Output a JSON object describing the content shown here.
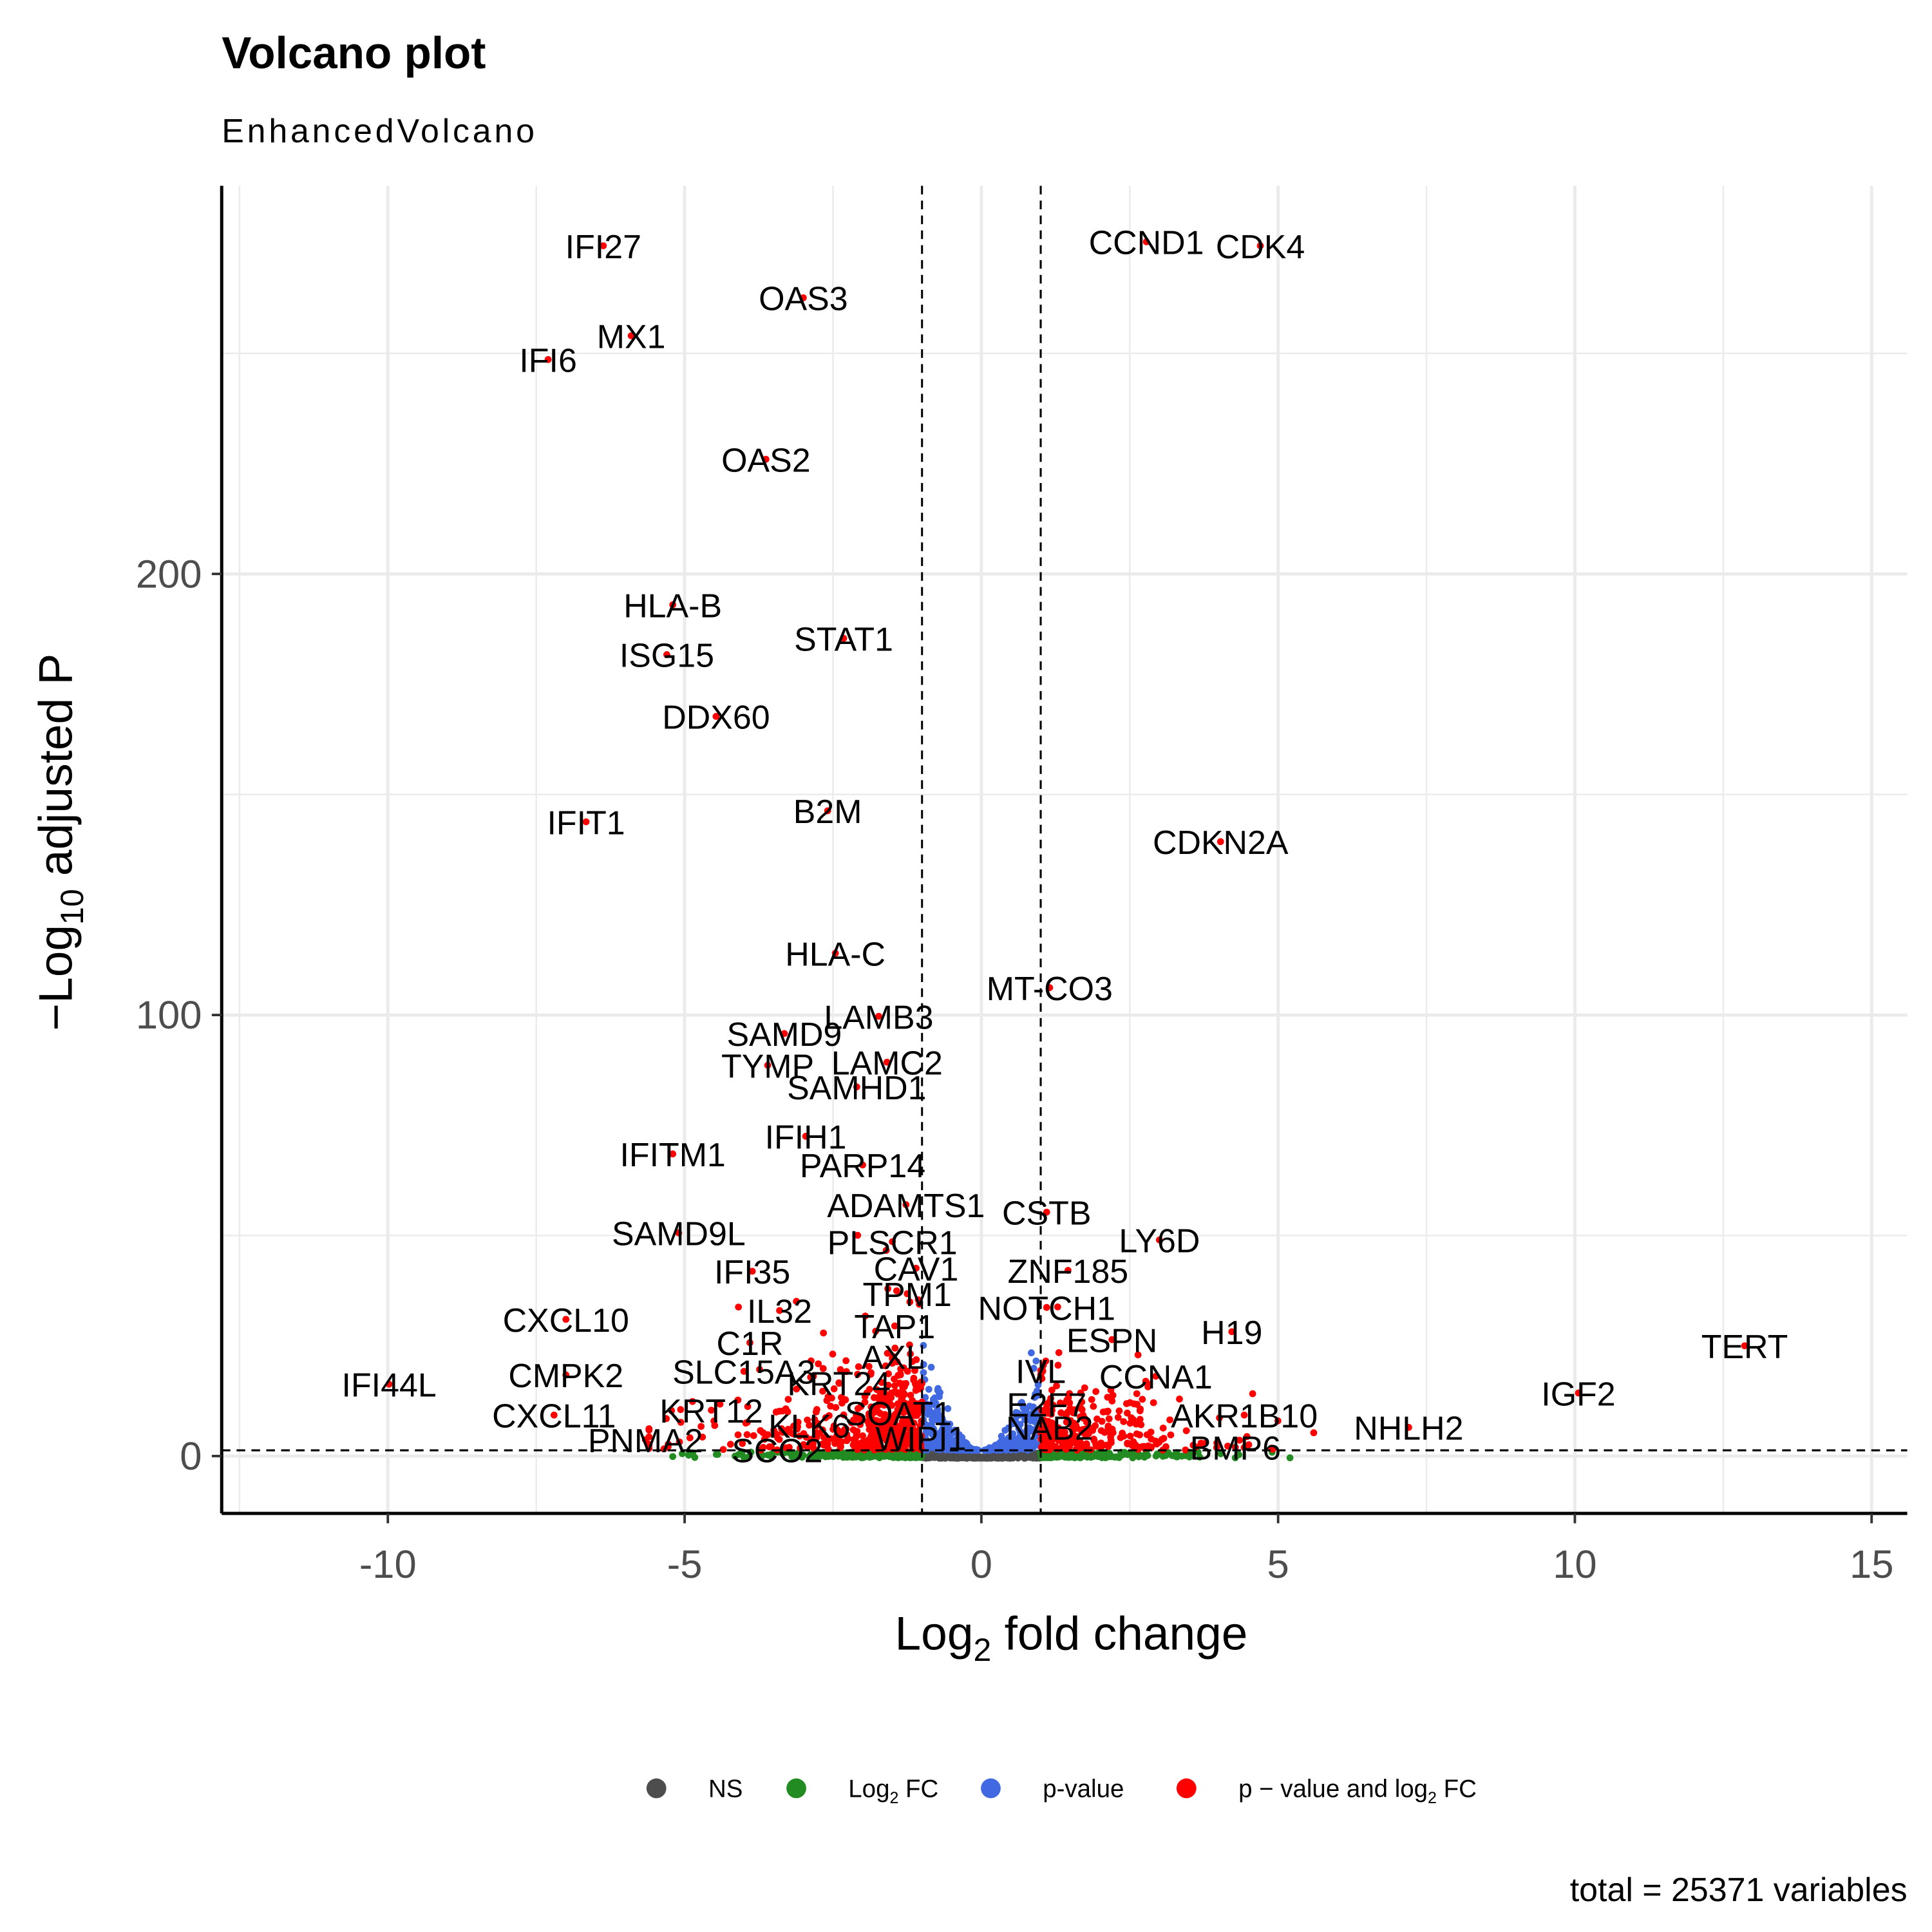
{
  "chart_data": {
    "type": "scatter",
    "title": "Volcano plot",
    "subtitle": "EnhancedVolcano",
    "xlabel_parts": [
      "Log",
      "2",
      " fold change"
    ],
    "ylabel_parts": [
      "−Log",
      "10",
      " adjusted P"
    ],
    "caption": "total = 25371 variables",
    "xlim": [
      -12.8,
      15.6
    ],
    "ylim": [
      -13,
      288
    ],
    "x_ticks": [
      -10,
      -5,
      0,
      5,
      10,
      15
    ],
    "x_tick_labels": [
      "-10",
      "-5",
      "0",
      "5",
      "10",
      "15"
    ],
    "y_ticks": [
      0,
      100,
      200
    ],
    "y_tick_labels": [
      "0",
      "100",
      "200"
    ],
    "grid": true,
    "fc_cutoff": 1,
    "p_cutoff_neglog10": 1.3,
    "legend_position": "bottom",
    "legend": [
      {
        "key": "NS",
        "parts": [
          "NS"
        ],
        "color": "#4d4d4d"
      },
      {
        "key": "FC",
        "parts": [
          "Log",
          "2",
          " FC"
        ],
        "color": "#228b22"
      },
      {
        "key": "P",
        "parts": [
          "p-value"
        ],
        "color": "#4169e1"
      },
      {
        "key": "FC_P",
        "parts": [
          "p − value and log",
          "2",
          " FC"
        ],
        "color": "#ff0000"
      }
    ],
    "category_counts_drawn": {
      "NS": 420,
      "FC": 520,
      "P": 420,
      "FC_P": 760
    },
    "labeled_points": [
      {
        "gene": "IFI27",
        "x": -6.37,
        "y": 274.4
      },
      {
        "gene": "OAS3",
        "x": -3.0,
        "y": 262.6
      },
      {
        "gene": "MX1",
        "x": -5.9,
        "y": 254
      },
      {
        "gene": "IFI6",
        "x": -7.3,
        "y": 248.6
      },
      {
        "gene": "OAS2",
        "x": -3.63,
        "y": 226
      },
      {
        "gene": "HLA-B",
        "x": -5.2,
        "y": 193
      },
      {
        "gene": "STAT1",
        "x": -2.32,
        "y": 185.4
      },
      {
        "gene": "ISG15",
        "x": -5.3,
        "y": 181.7
      },
      {
        "gene": "DDX60",
        "x": -4.47,
        "y": 167.7
      },
      {
        "gene": "B2M",
        "x": -2.59,
        "y": 146.3
      },
      {
        "gene": "IFIT1",
        "x": -6.66,
        "y": 143.8
      },
      {
        "gene": "CDKN2A",
        "x": 4.03,
        "y": 139.3
      },
      {
        "gene": "CCND1",
        "x": 2.78,
        "y": 275.3
      },
      {
        "gene": "CDK4",
        "x": 4.7,
        "y": 274.4
      },
      {
        "gene": "HLA-C",
        "x": -2.46,
        "y": 114
      },
      {
        "gene": "MT-CO3",
        "x": 1.15,
        "y": 106.2
      },
      {
        "gene": "SAMD9",
        "x": -3.32,
        "y": 95.8
      },
      {
        "gene": "LAMB3",
        "x": -1.73,
        "y": 99.7
      },
      {
        "gene": "TYMP",
        "x": -3.6,
        "y": 88.6
      },
      {
        "gene": "LAMC2",
        "x": -1.59,
        "y": 89.3
      },
      {
        "gene": "SAMHD1",
        "x": -2.1,
        "y": 83.7
      },
      {
        "gene": "IFIH1",
        "x": -2.96,
        "y": 72.5
      },
      {
        "gene": "IFITM1",
        "x": -5.2,
        "y": 68.5
      },
      {
        "gene": "PARP14",
        "x": -2.0,
        "y": 66
      },
      {
        "gene": "ADAMTS1",
        "x": -1.27,
        "y": 57
      },
      {
        "gene": "CSTB",
        "x": 1.1,
        "y": 55.3
      },
      {
        "gene": "SAMD9L",
        "x": -5.1,
        "y": 50.6
      },
      {
        "gene": "PLSCR1",
        "x": -1.5,
        "y": 48.6
      },
      {
        "gene": "LY6D",
        "x": 3.0,
        "y": 49
      },
      {
        "gene": "IFI35",
        "x": -3.86,
        "y": 41.9
      },
      {
        "gene": "CAV1",
        "x": -1.1,
        "y": 42.6
      },
      {
        "gene": "ZNF185",
        "x": 1.46,
        "y": 42.1
      },
      {
        "gene": "NOTCH1",
        "x": 1.1,
        "y": 33.7
      },
      {
        "gene": "CXCL10",
        "x": -7.0,
        "y": 31
      },
      {
        "gene": "IL32",
        "x": -3.4,
        "y": 33
      },
      {
        "gene": "TPM1",
        "x": -1.25,
        "y": 36.8
      },
      {
        "gene": "TAP1",
        "x": -1.46,
        "y": 29.5
      },
      {
        "gene": "H19",
        "x": 4.22,
        "y": 28.2
      },
      {
        "gene": "ESPN",
        "x": 2.2,
        "y": 26.4
      },
      {
        "gene": "TERT",
        "x": 12.86,
        "y": 25
      },
      {
        "gene": "C1R",
        "x": -3.9,
        "y": 25.7
      },
      {
        "gene": "AXL",
        "x": -1.49,
        "y": 22.6
      },
      {
        "gene": "IVL",
        "x": 1.0,
        "y": 19.4
      },
      {
        "gene": "CCNA1",
        "x": 2.94,
        "y": 18.1
      },
      {
        "gene": "CMPK2",
        "x": -7.0,
        "y": 18.4
      },
      {
        "gene": "IFI44L",
        "x": -9.98,
        "y": 16.3
      },
      {
        "gene": "SLC15A3",
        "x": -4.0,
        "y": 19.2
      },
      {
        "gene": "KRT24",
        "x": -2.4,
        "y": 16.6
      },
      {
        "gene": "IGF2",
        "x": 10.06,
        "y": 14.3
      },
      {
        "gene": "E2F7",
        "x": 1.1,
        "y": 11.8
      },
      {
        "gene": "KRT12",
        "x": -4.55,
        "y": 10.4
      },
      {
        "gene": "AKR1B10",
        "x": 4.43,
        "y": 9.3
      },
      {
        "gene": "SOAT1",
        "x": -1.4,
        "y": 9.8
      },
      {
        "gene": "CXCL11",
        "x": -7.2,
        "y": 9.3
      },
      {
        "gene": "KLK6",
        "x": -2.9,
        "y": 7
      },
      {
        "gene": "NHLH2",
        "x": 7.2,
        "y": 6.5
      },
      {
        "gene": "NAB2",
        "x": 1.15,
        "y": 6.5
      },
      {
        "gene": "WIPI1",
        "x": -1.02,
        "y": 4.2
      },
      {
        "gene": "PNMA2",
        "x": -5.66,
        "y": 3.7
      },
      {
        "gene": "SCO2",
        "x": -3.44,
        "y": 1.4
      },
      {
        "gene": "BMP6",
        "x": 4.28,
        "y": 2
      }
    ]
  }
}
